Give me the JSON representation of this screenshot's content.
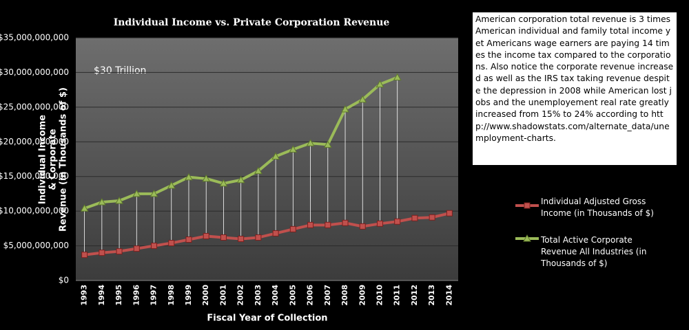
{
  "chart_data": {
    "type": "line",
    "title": "Individual  Income  vs. Private Corporation Revenue",
    "xlabel": "Fiscal Year of Collection",
    "ylabel": [
      "Individual Income",
      "& Corporate",
      "Revenue (in Thousands of $)"
    ],
    "annotation": "$30  Trillion",
    "note": "American corporation total  revenue is 3 times American individual  and family total income yet Americans wage earners are paying 14 times the income tax compared to the corporations.  Also notice the corporate revenue increased as well as the IRS tax taking revenue despite the depression in 2008 while American lost jobs and the  unemployement real rate greatly increased from 15% to 24% according to http://www.shadowstats.com/alternate_data/unemployment-charts.",
    "categories": [
      "1993",
      "1994",
      "1995",
      "1996",
      "1997",
      "1998",
      "1999",
      "2000",
      "2001",
      "2002",
      "2003",
      "2004",
      "2005",
      "2006",
      "2007",
      "2008",
      "2009",
      "2010",
      "2011",
      "2012",
      "2013",
      "2014"
    ],
    "series": [
      {
        "name": "Individual Adjusted Gross Income (in Thousands of $)",
        "color": "#c0504d",
        "marker": "square",
        "values": [
          3700000000,
          4000000000,
          4200000000,
          4600000000,
          5000000000,
          5400000000,
          5900000000,
          6400000000,
          6200000000,
          6000000000,
          6200000000,
          6800000000,
          7400000000,
          8000000000,
          8000000000,
          8300000000,
          7800000000,
          8200000000,
          8500000000,
          9000000000,
          9100000000,
          9700000000
        ]
      },
      {
        "name": "Total Active Corporate Revenue All Industries (in Thousands of $)",
        "color": "#9bbb59",
        "marker": "triangle",
        "values": [
          10400000000,
          11300000000,
          11500000000,
          12500000000,
          12500000000,
          13700000000,
          14900000000,
          14700000000,
          14000000000,
          14500000000,
          15800000000,
          17900000000,
          18900000000,
          19800000000,
          19600000000,
          24700000000,
          26100000000,
          28300000000,
          29300000000,
          null,
          null,
          null
        ]
      }
    ],
    "ylim": [
      0,
      35000000000
    ],
    "yticks": [
      {
        "value": 0,
        "label": "$0"
      },
      {
        "value": 5000000000,
        "label": "$5,000,000,000"
      },
      {
        "value": 10000000000,
        "label": "$10,000,000,000"
      },
      {
        "value": 15000000000,
        "label": "$15,000,000,000"
      },
      {
        "value": 20000000000,
        "label": "$20,000,000,000"
      },
      {
        "value": 25000000000,
        "label": "$25,000,000,000"
      },
      {
        "value": 30000000000,
        "label": "$30,000,000,000"
      },
      {
        "value": 35000000000,
        "label": "$35,000,000,000"
      }
    ],
    "grid": true,
    "drop_lines": true
  }
}
